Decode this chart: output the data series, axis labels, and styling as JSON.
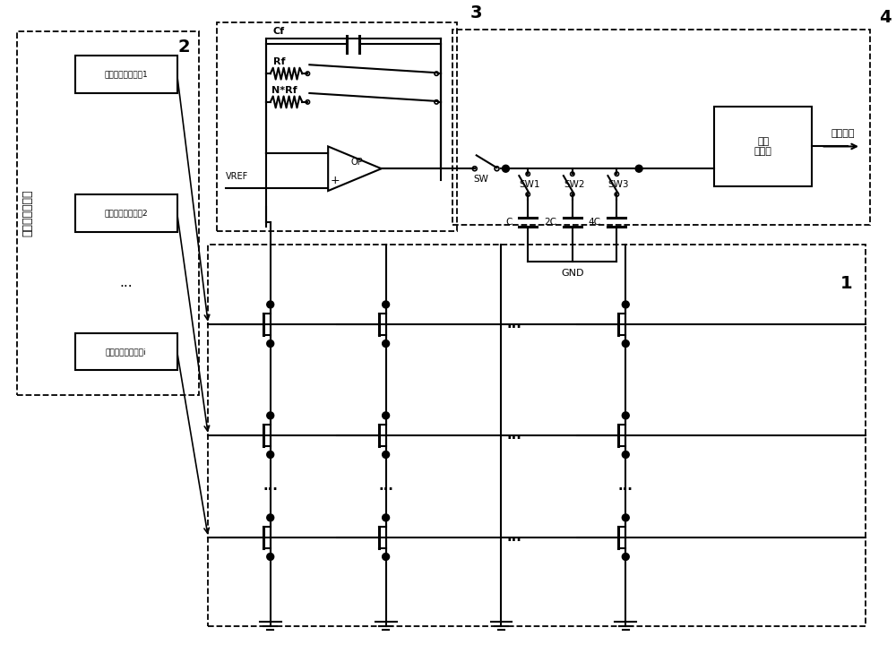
{
  "title": "",
  "bg_color": "#ffffff",
  "line_color": "#000000",
  "dashed_color": "#000000",
  "fig_width": 10.0,
  "fig_height": 7.2,
  "label_1": "1",
  "label_2": "2",
  "label_3": "3",
  "label_4": "4",
  "text_decoder": "字线选择译码器",
  "text_wl1": "字线电平转换电路1",
  "text_wl2": "字线电平转换电路2",
  "text_wli": "字线电平转换电路i",
  "text_op": "OP",
  "text_vref": "VREF",
  "text_cf": "Cf",
  "text_rf": "Rf",
  "text_nrf": "N*Rf",
  "text_adc": "模数\n转换器",
  "text_digital_out": "数字输出",
  "text_sw": "SW",
  "text_sw1": "SW1",
  "text_sw2": "SW2",
  "text_sw3": "SW3",
  "text_c": "C",
  "text_2c": "2C",
  "text_4c": "4C",
  "text_gnd": "GND",
  "text_dots": "..."
}
